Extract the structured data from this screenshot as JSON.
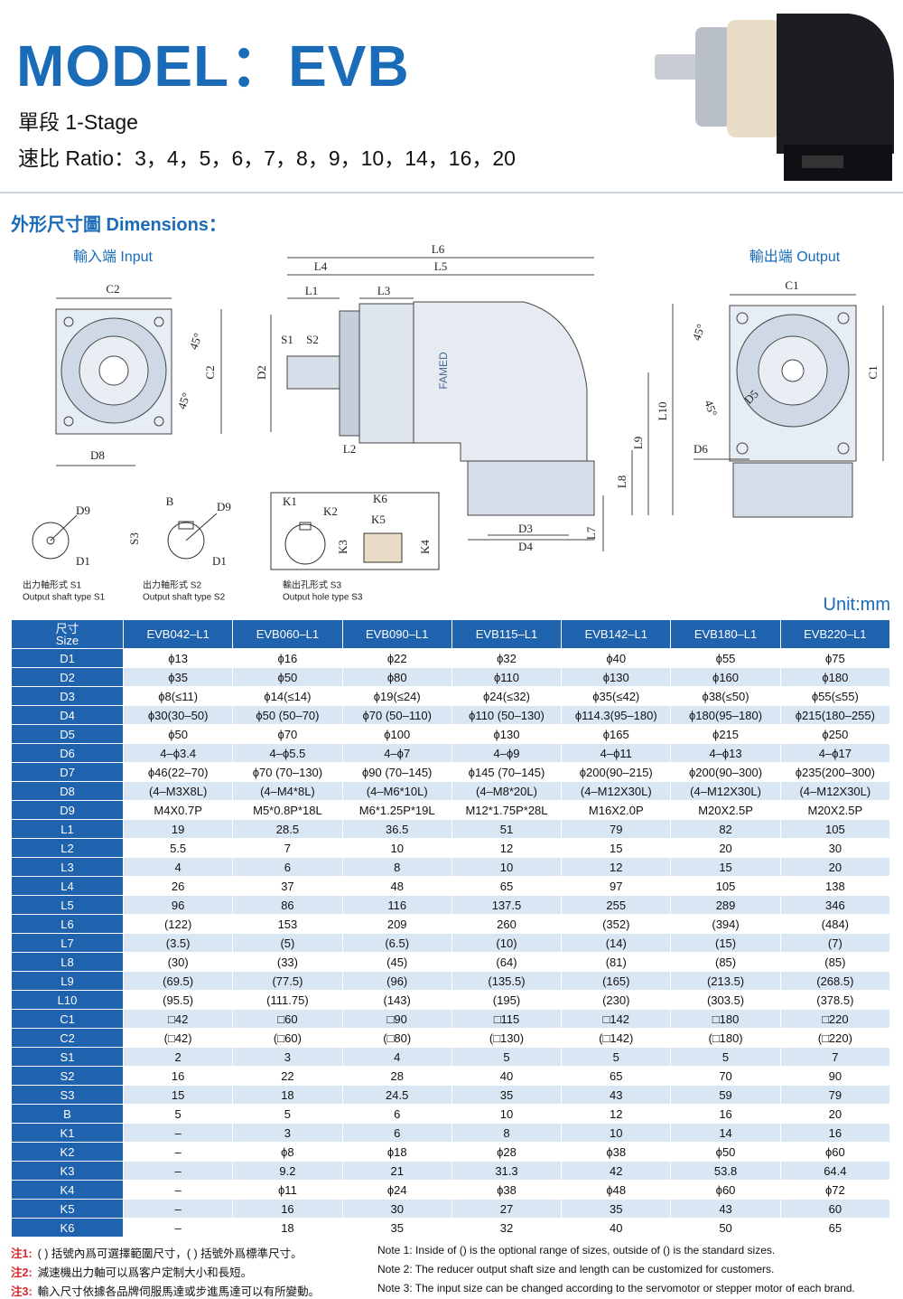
{
  "header": {
    "title": "MODEL：EVB",
    "stage": "單段 1-Stage",
    "ratio": "速比 Ratio：3，4，5，6，7，8，9，10，14，16，20"
  },
  "dimensions": {
    "heading": "外形尺寸圖 Dimensions：",
    "labels": [
      "輸入端 Input",
      "C2",
      "45°",
      "C2",
      "45°",
      "D8",
      "輸出端 Output",
      "C1",
      "45°",
      "C1",
      "45°",
      "D5",
      "D6",
      "L6",
      "L4",
      "L5",
      "L1",
      "L3",
      "S1",
      "S2",
      "D2",
      "L2",
      "L10",
      "L9",
      "L8",
      "L7",
      "D3",
      "D4",
      "D9",
      "D1",
      "B",
      "D9",
      "S3",
      "D1",
      "K1",
      "K2",
      "K6",
      "K5",
      "K3",
      "K4",
      "出力軸形式 S1",
      "Output shaft type S1",
      "出力軸形式 S2",
      "Output shaft type S2",
      "輸出孔形式 S3",
      "Output hole type S3",
      "FAMED"
    ]
  },
  "unit": "Unit:mm",
  "table": {
    "corner": [
      "尺寸",
      "Size"
    ],
    "columns": [
      "EVB042–L1",
      "EVB060–L1",
      "EVB090–L1",
      "EVB115–L1",
      "EVB142–L1",
      "EVB180–L1",
      "EVB220–L1"
    ],
    "rows": [
      [
        "D1",
        "ϕ13",
        "ϕ16",
        "ϕ22",
        "ϕ32",
        "ϕ40",
        "ϕ55",
        "ϕ75"
      ],
      [
        "D2",
        "ϕ35",
        "ϕ50",
        "ϕ80",
        "ϕ110",
        "ϕ130",
        "ϕ160",
        "ϕ180"
      ],
      [
        "D3",
        "ϕ8(≤11)",
        "ϕ14(≤14)",
        "ϕ19(≤24)",
        "ϕ24(≤32)",
        "ϕ35(≤42)",
        "ϕ38(≤50)",
        "ϕ55(≤55)"
      ],
      [
        "D4",
        "ϕ30(30–50)",
        "ϕ50 (50–70)",
        "ϕ70 (50–110)",
        "ϕ110 (50–130)",
        "ϕ114.3(95–180)",
        "ϕ180(95–180)",
        "ϕ215(180–255)"
      ],
      [
        "D5",
        "ϕ50",
        "ϕ70",
        "ϕ100",
        "ϕ130",
        "ϕ165",
        "ϕ215",
        "ϕ250"
      ],
      [
        "D6",
        "4–ϕ3.4",
        "4–ϕ5.5",
        "4–ϕ7",
        "4–ϕ9",
        "4–ϕ11",
        "4–ϕ13",
        "4–ϕ17"
      ],
      [
        "D7",
        "ϕ46(22–70)",
        "ϕ70 (70–130)",
        "ϕ90 (70–145)",
        "ϕ145 (70–145)",
        "ϕ200(90–215)",
        "ϕ200(90–300)",
        "ϕ235(200–300)"
      ],
      [
        "D8",
        "(4–M3X8L)",
        "(4–M4*8L)",
        "(4–M6*10L)",
        "(4–M8*20L)",
        "(4–M12X30L)",
        "(4–M12X30L)",
        "(4–M12X30L)"
      ],
      [
        "D9",
        "M4X0.7P",
        "M5*0.8P*18L",
        "M6*1.25P*19L",
        "M12*1.75P*28L",
        "M16X2.0P",
        "M20X2.5P",
        "M20X2.5P"
      ],
      [
        "L1",
        "19",
        "28.5",
        "36.5",
        "51",
        "79",
        "82",
        "105"
      ],
      [
        "L2",
        "5.5",
        "7",
        "10",
        "12",
        "15",
        "20",
        "30"
      ],
      [
        "L3",
        "4",
        "6",
        "8",
        "10",
        "12",
        "15",
        "20"
      ],
      [
        "L4",
        "26",
        "37",
        "48",
        "65",
        "97",
        "105",
        "138"
      ],
      [
        "L5",
        "96",
        "86",
        "116",
        "137.5",
        "255",
        "289",
        "346"
      ],
      [
        "L6",
        "(122)",
        "153",
        "209",
        "260",
        "(352)",
        "(394)",
        "(484)"
      ],
      [
        "L7",
        "(3.5)",
        "(5)",
        "(6.5)",
        "(10)",
        "(14)",
        "(15)",
        "(7)"
      ],
      [
        "L8",
        "(30)",
        "(33)",
        "(45)",
        "(64)",
        "(81)",
        "(85)",
        "(85)"
      ],
      [
        "L9",
        "(69.5)",
        "(77.5)",
        "(96)",
        "(135.5)",
        "(165)",
        "(213.5)",
        "(268.5)"
      ],
      [
        "L10",
        "(95.5)",
        "(111.75)",
        "(143)",
        "(195)",
        "(230)",
        "(303.5)",
        "(378.5)"
      ],
      [
        "C1",
        "□42",
        "□60",
        "□90",
        "□115",
        "□142",
        "□180",
        "□220"
      ],
      [
        "C2",
        "(□42)",
        "(□60)",
        "(□80)",
        "(□130)",
        "(□142)",
        "(□180)",
        "(□220)"
      ],
      [
        "S1",
        "2",
        "3",
        "4",
        "5",
        "5",
        "5",
        "7"
      ],
      [
        "S2",
        "16",
        "22",
        "28",
        "40",
        "65",
        "70",
        "90"
      ],
      [
        "S3",
        "15",
        "18",
        "24.5",
        "35",
        "43",
        "59",
        "79"
      ],
      [
        "B",
        "5",
        "5",
        "6",
        "10",
        "12",
        "16",
        "20"
      ],
      [
        "K1",
        "–",
        "3",
        "6",
        "8",
        "10",
        "14",
        "16"
      ],
      [
        "K2",
        "–",
        "ϕ8",
        "ϕ18",
        "ϕ28",
        "ϕ38",
        "ϕ50",
        "ϕ60"
      ],
      [
        "K3",
        "–",
        "9.2",
        "21",
        "31.3",
        "42",
        "53.8",
        "64.4"
      ],
      [
        "K4",
        "–",
        "ϕ11",
        "ϕ24",
        "ϕ38",
        "ϕ48",
        "ϕ60",
        "ϕ72"
      ],
      [
        "K5",
        "–",
        "16",
        "30",
        "27",
        "35",
        "43",
        "60"
      ],
      [
        "K6",
        "–",
        "18",
        "35",
        "32",
        "40",
        "50",
        "65"
      ]
    ]
  },
  "notes": [
    {
      "tag": "注1:",
      "zh": "( ) 括號內爲可選擇範圍尺寸，( ) 括號外爲標準尺寸。",
      "en": "Note 1: Inside of () is the optional range of sizes, outside of () is the standard sizes."
    },
    {
      "tag": "注2:",
      "zh": "減速機出力軸可以爲客户定制大小和長短。",
      "en": "Note 2: The reducer output shaft size and length can be customized for customers."
    },
    {
      "tag": "注3:",
      "zh": "輸入尺寸依據各品牌伺服馬達或步進馬達可以有所變動。",
      "en": "Note 3: The input size can be changed according to the servomotor or stepper motor of each brand."
    }
  ]
}
